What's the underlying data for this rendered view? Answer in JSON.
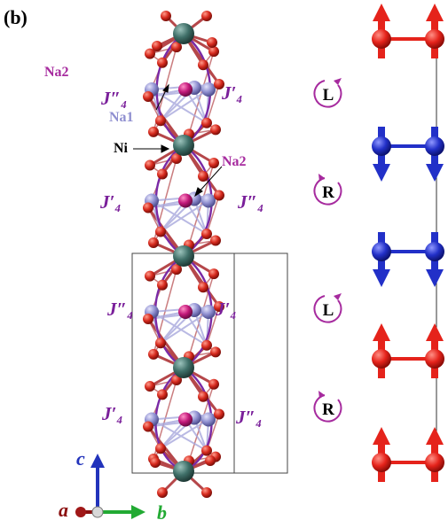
{
  "panel_label": "(b)",
  "labels": {
    "na2_top": "Na2",
    "na1": "Na1",
    "ni": "Ni",
    "na2_mid": "Na2",
    "j4_prime": "J′₄",
    "j4_double": "J″₄"
  },
  "rotations": [
    "L",
    "R",
    "L",
    "R"
  ],
  "axes": {
    "c": "c",
    "a": "a",
    "b": "b"
  },
  "colors": {
    "helix": "#7a2aa6",
    "na2": "#c2187a",
    "na1": "#8f8fd0",
    "ni": "#3f6f68",
    "oxygen": "#d62a1e",
    "spin_up": "#e5231b",
    "spin_down": "#2230c8",
    "label_purple": "#a62a9e",
    "j_label": "#7a1f9a",
    "axis_c": "#2233bb",
    "axis_a": "#8b1010",
    "axis_b": "#22aa33"
  },
  "spin_rows": [
    "up",
    "down",
    "down",
    "up",
    "up"
  ]
}
